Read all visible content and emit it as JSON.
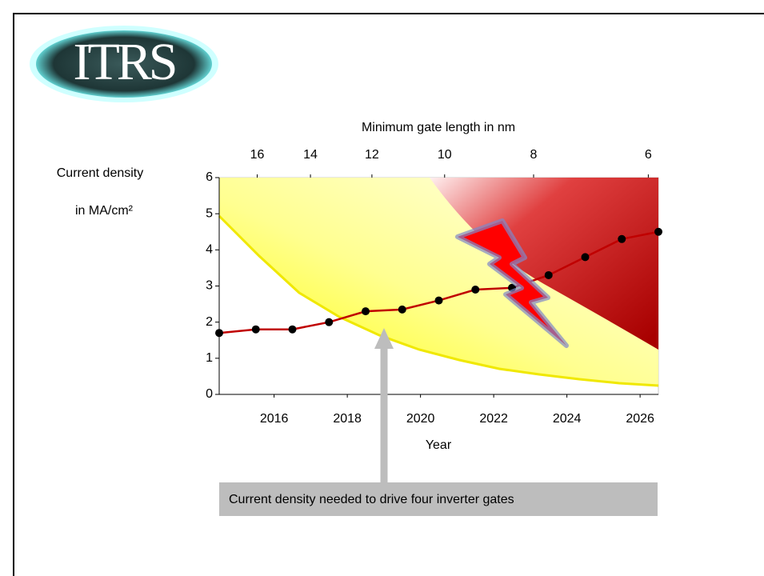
{
  "logo": "ITRS",
  "chart_data": {
    "type": "line",
    "x2_label": "Minimum gate length in nm",
    "x_label": "Year",
    "y_label": [
      "Current density",
      "in MA/cm²"
    ],
    "x": [
      2014.5,
      2015.5,
      2016.5,
      2017.5,
      2018.5,
      2019.5,
      2020.5,
      2021.5,
      2022.5,
      2023.5,
      2024.5,
      2025.5,
      2026.5
    ],
    "values": [
      1.7,
      1.8,
      1.8,
      2.0,
      2.3,
      2.35,
      2.6,
      2.9,
      2.95,
      3.3,
      3.8,
      4.3,
      4.5
    ],
    "color": "#c00000",
    "marker_color": "#000000",
    "xlim": [
      2014.5,
      2026.5
    ],
    "xticks": [
      2016,
      2018,
      2020,
      2022,
      2024,
      2026
    ],
    "x2lim": [
      17.6,
      5.85
    ],
    "x2ticks": [
      16,
      14,
      12,
      10,
      8,
      6
    ],
    "x2scale": "log",
    "ylim": [
      0,
      6
    ],
    "yticks": [
      0,
      1,
      2,
      3,
      4,
      5,
      6
    ],
    "annotation": "Current density needed to drive four inverter gates"
  }
}
